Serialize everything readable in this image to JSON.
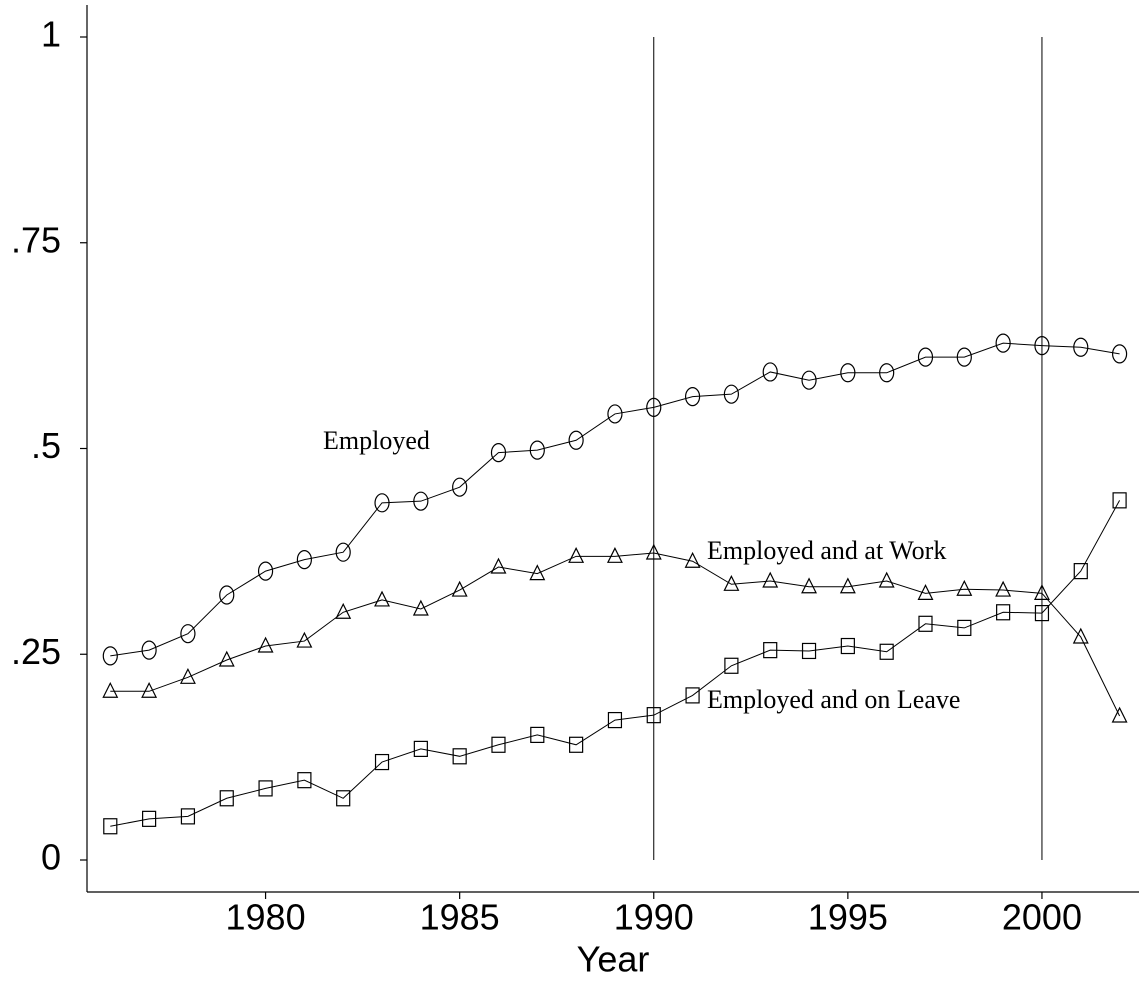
{
  "chart_data": {
    "type": "line",
    "x_label": "Year",
    "x": [
      1976,
      1977,
      1978,
      1979,
      1980,
      1981,
      1982,
      1983,
      1984,
      1985,
      1986,
      1987,
      1988,
      1989,
      1990,
      1991,
      1992,
      1993,
      1994,
      1995,
      1996,
      1997,
      1998,
      1999,
      2000,
      2001,
      2002
    ],
    "series": [
      {
        "name": "Employed",
        "color": "#000000",
        "marker": "circle",
        "values": [
          0.248,
          0.255,
          0.275,
          0.322,
          0.351,
          0.365,
          0.374,
          0.434,
          0.436,
          0.453,
          0.495,
          0.498,
          0.51,
          0.542,
          0.55,
          0.563,
          0.566,
          0.593,
          0.583,
          0.592,
          0.592,
          0.611,
          0.611,
          0.628,
          0.625,
          0.623,
          0.615
        ]
      },
      {
        "name": "Employed and at Work",
        "color": "#000000",
        "marker": "triangle",
        "values": [
          0.205,
          0.205,
          0.222,
          0.243,
          0.26,
          0.266,
          0.301,
          0.316,
          0.305,
          0.328,
          0.356,
          0.348,
          0.369,
          0.369,
          0.373,
          0.363,
          0.335,
          0.339,
          0.332,
          0.332,
          0.339,
          0.324,
          0.329,
          0.328,
          0.324,
          0.271,
          0.175
        ]
      },
      {
        "name": "Employed and on Leave",
        "color": "#000000",
        "marker": "square",
        "values": [
          0.041,
          0.05,
          0.053,
          0.075,
          0.087,
          0.097,
          0.075,
          0.119,
          0.135,
          0.126,
          0.14,
          0.152,
          0.14,
          0.17,
          0.176,
          0.2,
          0.236,
          0.255,
          0.254,
          0.26,
          0.253,
          0.287,
          0.282,
          0.301,
          0.3,
          0.351,
          0.437
        ]
      }
    ],
    "vlines": [
      1990,
      2000
    ],
    "xlim": [
      1975.4,
      2002.5
    ],
    "xticks": [
      1980,
      1985,
      1990,
      1995,
      2000
    ],
    "ylim": [
      0,
      1
    ],
    "yticks": [
      0,
      {
        "value": 0.25,
        "label": ".25"
      },
      {
        "value": 0.5,
        "label": ".5"
      },
      {
        "value": 0.75,
        "label": ".75"
      },
      1
    ],
    "legend": false
  }
}
